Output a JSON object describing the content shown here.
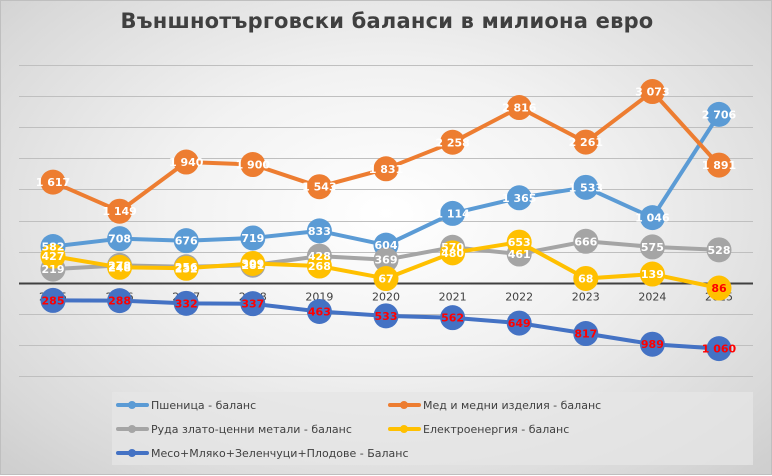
{
  "chart_data": {
    "type": "line",
    "title": "Външнотърговски баланси в милиона евро",
    "xlabel": "",
    "ylabel": "",
    "categories": [
      "2015",
      "2016",
      "2017",
      "2018",
      "2019",
      "2020",
      "2021",
      "2022",
      "2023",
      "2024",
      "2025"
    ],
    "ylim": [
      -1500,
      3500
    ],
    "ytick_step": 500,
    "grid": true,
    "y_tick_labels_visible": false,
    "legend_position": "bottom",
    "negative_label_color": "#ff0000",
    "positive_label_color": "#ffffff",
    "series": [
      {
        "name": "Пшеница - баланс",
        "color": "#5b9bd5",
        "values": [
          582,
          708,
          676,
          719,
          833,
          604,
          1114,
          1365,
          1533,
          1046,
          2706
        ],
        "labels": [
          "582",
          "708",
          "676",
          "719",
          "833",
          "604",
          "1 114",
          "1 365",
          "1 533",
          "1 046",
          "2 706"
        ]
      },
      {
        "name": "Мед и медни изделия - баланс",
        "color": "#ed7d31",
        "values": [
          1617,
          1149,
          1940,
          1900,
          1543,
          1831,
          2258,
          2816,
          2261,
          3073,
          1891
        ],
        "labels": [
          "1 617",
          "1 149",
          "1 940",
          "1 900",
          "1 543",
          "1 831",
          "2 258",
          "2 816",
          "2 261",
          "3 073",
          "1 891"
        ]
      },
      {
        "name": "Руда злато-ценни метали - баланс",
        "color": "#a5a5a5",
        "values": [
          219,
          278,
          256,
          281,
          428,
          369,
          570,
          461,
          666,
          575,
          528
        ],
        "labels": [
          "219",
          "278",
          "256",
          "281",
          "428",
          "369",
          "570",
          "461",
          "666",
          "575",
          "528"
        ]
      },
      {
        "name": "Електроенергия - баланс",
        "color": "#ffc000",
        "values": [
          427,
          248,
          232,
          309,
          268,
          67,
          480,
          653,
          68,
          139,
          -86
        ],
        "labels": [
          "427",
          "248",
          "232",
          "309",
          "268",
          "67",
          "480",
          "653",
          "68",
          "139",
          "86"
        ]
      },
      {
        "name": "Месо+Мляко+Зеленчуци+Плодове - Баланс",
        "color": "#4472c4",
        "values": [
          -285,
          -288,
          -332,
          -337,
          -463,
          -533,
          -562,
          -649,
          -817,
          -989,
          -1060
        ],
        "labels": [
          "285",
          "288",
          "332",
          "337",
          "463",
          "533",
          "562",
          "649",
          "817",
          "989",
          "1 060"
        ]
      }
    ]
  }
}
